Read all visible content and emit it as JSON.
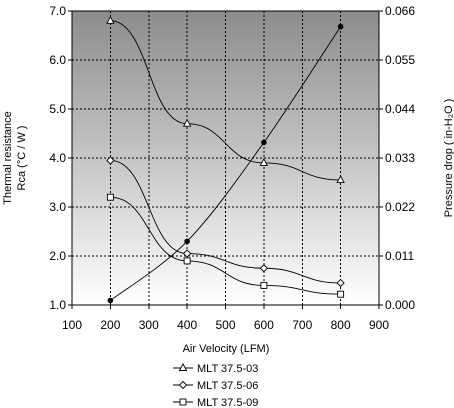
{
  "chart_data": {
    "type": "line",
    "title": "",
    "xlabel": "Air Velocity (LFM)",
    "ylabel_left": [
      "Thermal resistance",
      "Rca (°C / W )"
    ],
    "ylabel_right": "Pressure drop ( in-H₂O )",
    "xlim": [
      100,
      900
    ],
    "ylim_left": [
      1.0,
      7.0
    ],
    "ylim_right": [
      0.0,
      0.066
    ],
    "x_ticks": [
      100,
      200,
      300,
      400,
      500,
      600,
      700,
      800,
      900
    ],
    "y_left_ticks": [
      "1.0",
      "2.0",
      "3.0",
      "4.0",
      "5.0",
      "6.0",
      "7.0"
    ],
    "y_right_ticks": [
      "0.000",
      "0.011",
      "0.022",
      "0.033",
      "0.044",
      "0.055",
      "0.066"
    ],
    "grid": true,
    "legend_position": "bottom",
    "series": [
      {
        "name": "MLT 37.5-03",
        "axis": "left",
        "marker": "triangle",
        "x": [
          200,
          400,
          600,
          800
        ],
        "y": [
          6.8,
          4.7,
          3.9,
          3.55
        ]
      },
      {
        "name": "MLT 37.5-06",
        "axis": "left",
        "marker": "diamond",
        "x": [
          200,
          400,
          600,
          800
        ],
        "y": [
          3.95,
          2.05,
          1.75,
          1.45
        ]
      },
      {
        "name": "MLT 37.5-09",
        "axis": "left",
        "marker": "square",
        "x": [
          200,
          400,
          600,
          800
        ],
        "y": [
          3.2,
          1.9,
          1.4,
          1.22
        ]
      },
      {
        "axis": "right",
        "marker": "dot",
        "x": [
          200,
          400,
          600,
          800
        ],
        "y": [
          0.001,
          0.0143,
          0.0365,
          0.0625
        ]
      }
    ],
    "colors": {
      "plot_top": "#8c8c8c",
      "plot_bottom": "#ffffff",
      "line": "#000000"
    }
  }
}
